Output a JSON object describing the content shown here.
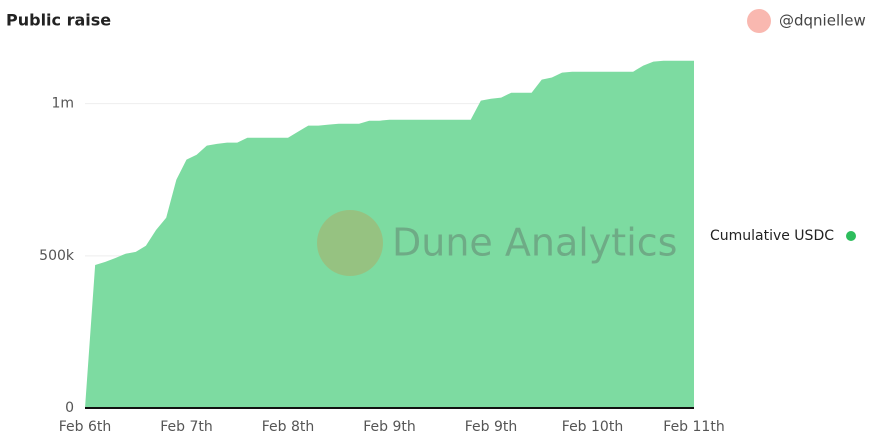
{
  "chart_data": {
    "type": "area",
    "title": "Public raise",
    "author": "@dqniellew",
    "watermark": "Dune Analytics",
    "categories": [
      "Feb 6th",
      null,
      null,
      null,
      null,
      null,
      null,
      null,
      null,
      null,
      "Feb 7th",
      null,
      null,
      null,
      null,
      null,
      null,
      null,
      null,
      null,
      "Feb 8th",
      null,
      null,
      null,
      null,
      null,
      null,
      null,
      null,
      null,
      "Feb 9th",
      null,
      null,
      null,
      null,
      null,
      null,
      null,
      null,
      null,
      "Feb 9th",
      null,
      null,
      null,
      null,
      null,
      null,
      null,
      null,
      null,
      "Feb 10th",
      null,
      null,
      null,
      null,
      null,
      null,
      null,
      null,
      null,
      "Feb 11th"
    ],
    "series": [
      {
        "name": "Cumulative USDC",
        "color": "#7ddba1",
        "legend_color": "#2dbd5c",
        "values": [
          0,
          470000,
          480000,
          493000,
          507000,
          513000,
          533000,
          585000,
          625000,
          750000,
          816000,
          832000,
          862000,
          868000,
          872000,
          872000,
          888000,
          888000,
          888000,
          888000,
          888000,
          908000,
          928000,
          928000,
          931000,
          934000,
          934000,
          934000,
          944000,
          944000,
          947000,
          947000,
          947000,
          947000,
          947000,
          947000,
          947000,
          947000,
          947000,
          1010000,
          1016000,
          1020000,
          1036000,
          1036000,
          1036000,
          1079000,
          1086000,
          1102000,
          1105000,
          1105000,
          1105000,
          1105000,
          1105000,
          1105000,
          1105000,
          1125000,
          1138000,
          1141000,
          1141000,
          1141000,
          1141000
        ]
      }
    ],
    "ylim": [
      0,
      1150000
    ],
    "yticks": [
      0,
      {
        "value": 500000,
        "label": "500k"
      },
      {
        "value": 1000000,
        "label": "1m"
      }
    ],
    "grid": true,
    "legend": "right"
  }
}
